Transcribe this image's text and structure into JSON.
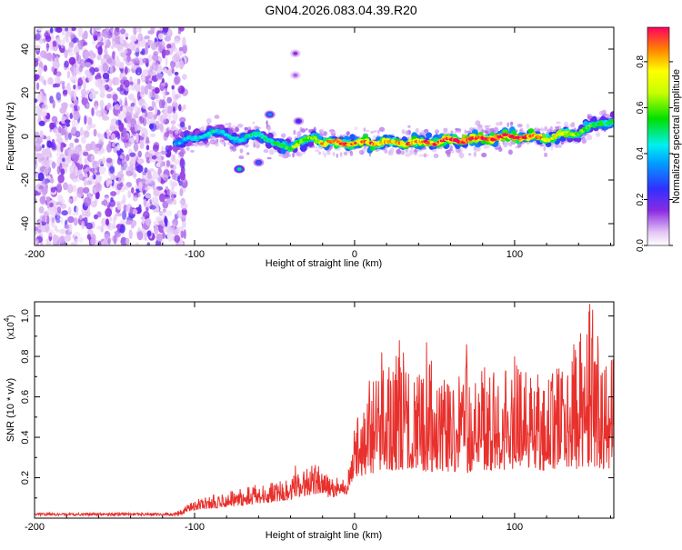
{
  "title": "GN04.2026.083.04.39.R20",
  "chart_data": [
    {
      "type": "heatmap",
      "name": "spectrogram",
      "xlabel": "Height of straight line (km)",
      "ylabel": "Frequency (Hz)",
      "xlim": [
        -200,
        162
      ],
      "ylim": [
        -50,
        50
      ],
      "xticks": [
        -200,
        -100,
        0,
        100
      ],
      "yticks": [
        -40,
        -20,
        0,
        20,
        40
      ],
      "colorbar": {
        "label": "Normalized spectral amplitude",
        "range": [
          0,
          0.95
        ],
        "ticks": [
          0.0,
          0.2,
          0.4,
          0.6,
          0.8
        ],
        "tick_labels": [
          "0.0",
          "0.2",
          "0.4",
          "0.6",
          "0.8"
        ]
      },
      "noise_region_x": [
        -200,
        -110
      ],
      "ridge": {
        "x": [
          -112,
          -100,
          -90,
          -80,
          -70,
          -60,
          -50,
          -40,
          -30,
          -25,
          -20,
          -10,
          0,
          20,
          40,
          60,
          80,
          100,
          120,
          140,
          150,
          160
        ],
        "freq": [
          -3,
          -1,
          2,
          1,
          -2,
          2,
          -4,
          -5,
          -2,
          0,
          -3,
          -3,
          -3,
          -3,
          -3,
          -2,
          -1,
          0,
          -1,
          2,
          5,
          7
        ],
        "amplitude": [
          0.35,
          0.45,
          0.45,
          0.4,
          0.45,
          0.5,
          0.5,
          0.6,
          0.65,
          0.6,
          0.8,
          0.85,
          0.85,
          0.8,
          0.85,
          0.9,
          0.9,
          0.95,
          0.75,
          0.6,
          0.55,
          0.5
        ]
      },
      "blobs": [
        {
          "x": -72,
          "freq": -15,
          "amplitude": 0.5
        },
        {
          "x": -53,
          "freq": 10,
          "amplitude": 0.35
        },
        {
          "x": -35,
          "freq": 7,
          "amplitude": 0.25
        },
        {
          "x": -37,
          "freq": 38,
          "amplitude": 0.15
        },
        {
          "x": -37,
          "freq": 28,
          "amplitude": 0.12
        },
        {
          "x": -60,
          "freq": -12,
          "amplitude": 0.3
        }
      ]
    },
    {
      "type": "line",
      "name": "snr",
      "xlabel": "Height of straight line (km)",
      "ylabel": "SNR (10 * v/v)",
      "y_multiplier": "(x10",
      "y_multiplier_exp": "4",
      "y_multiplier_close": ")",
      "xlim": [
        -200,
        162
      ],
      "ylim": [
        0,
        1.07
      ],
      "xticks": [
        -200,
        -100,
        0,
        100
      ],
      "yticks": [
        0.2,
        0.4,
        0.6,
        0.8,
        1.0
      ],
      "ytick_labels": [
        "0.2",
        "0.4",
        "0.6",
        "0.8",
        "1.0"
      ],
      "color": "#e8302c",
      "envelope": {
        "x": [
          -200,
          -150,
          -110,
          -100,
          -80,
          -60,
          -40,
          -25,
          -15,
          -5,
          0,
          10,
          20,
          30,
          40,
          50,
          60,
          70,
          80,
          90,
          100,
          110,
          120,
          130,
          140,
          148,
          155,
          162
        ],
        "base": [
          0.01,
          0.01,
          0.012,
          0.04,
          0.055,
          0.07,
          0.09,
          0.12,
          0.1,
          0.12,
          0.2,
          0.22,
          0.23,
          0.24,
          0.24,
          0.22,
          0.23,
          0.22,
          0.24,
          0.23,
          0.24,
          0.25,
          0.23,
          0.25,
          0.24,
          0.25,
          0.24,
          0.25
        ],
        "peak": [
          0.03,
          0.03,
          0.035,
          0.1,
          0.13,
          0.17,
          0.2,
          0.29,
          0.2,
          0.2,
          0.45,
          0.7,
          0.75,
          0.85,
          0.8,
          0.78,
          0.7,
          0.8,
          0.75,
          0.72,
          0.8,
          0.7,
          0.75,
          0.75,
          0.9,
          1.07,
          0.85,
          0.8
        ]
      },
      "spikes": [
        {
          "x": 147,
          "y": 1.06
        },
        {
          "x": 28,
          "y": 0.88
        },
        {
          "x": 45,
          "y": 0.87
        },
        {
          "x": 70,
          "y": 0.86
        },
        {
          "x": 137,
          "y": 0.86
        },
        {
          "x": 17,
          "y": 0.82
        },
        {
          "x": 100,
          "y": 0.8
        },
        {
          "x": 152,
          "y": 0.9
        },
        {
          "x": 4,
          "y": 0.44
        },
        {
          "x": -37,
          "y": 0.26
        }
      ]
    }
  ]
}
